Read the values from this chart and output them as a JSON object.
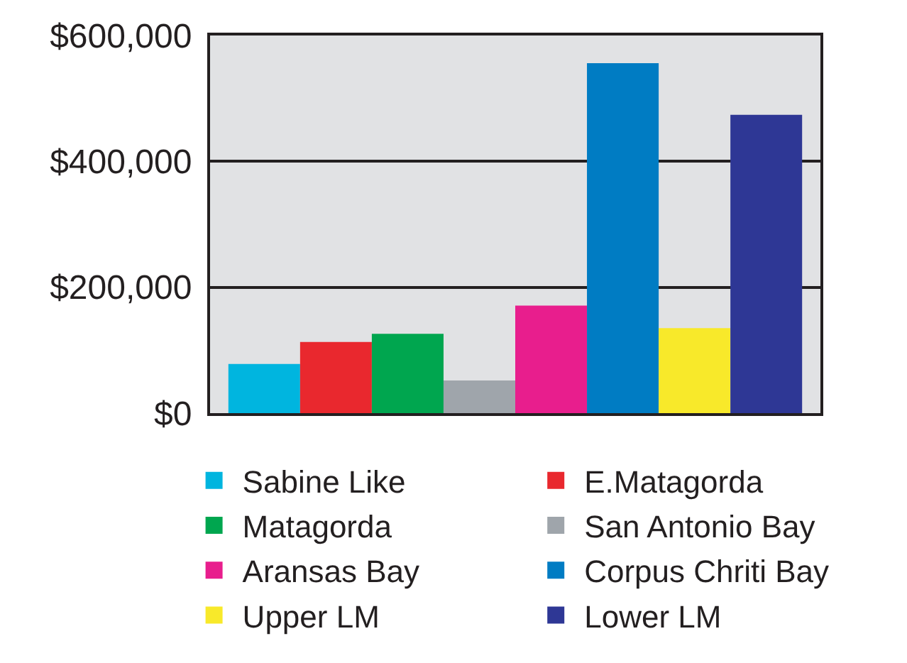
{
  "chart_data": {
    "type": "bar",
    "categories": [
      null
    ],
    "series": [
      {
        "name": "Sabine Like",
        "color": "#00b5df",
        "values": [
          78000
        ]
      },
      {
        "name": "E.Matagorda",
        "color": "#e9282e",
        "values": [
          113000
        ]
      },
      {
        "name": "Matagorda",
        "color": "#00a64f",
        "values": [
          126000
        ]
      },
      {
        "name": "San Antonio Bay",
        "color": "#9fa5ab",
        "values": [
          52000
        ]
      },
      {
        "name": "Aransas Bay",
        "color": "#e81e8d",
        "values": [
          171000
        ]
      },
      {
        "name": "Corpus Chriti Bay",
        "color": "#007cc3",
        "values": [
          556000
        ]
      },
      {
        "name": "Upper LM",
        "color": "#f8e92a",
        "values": [
          135000
        ]
      },
      {
        "name": "Lower LM",
        "color": "#2e3795",
        "values": [
          474000
        ]
      }
    ],
    "ylim": [
      0,
      600000
    ],
    "yticks": [
      {
        "value": 0,
        "label": "$0"
      },
      {
        "value": 200000,
        "label": "$200,000"
      },
      {
        "value": 400000,
        "label": "$400,000"
      },
      {
        "value": 600000,
        "label": "$600,000"
      }
    ],
    "grid": "y",
    "legend": "bottom"
  }
}
